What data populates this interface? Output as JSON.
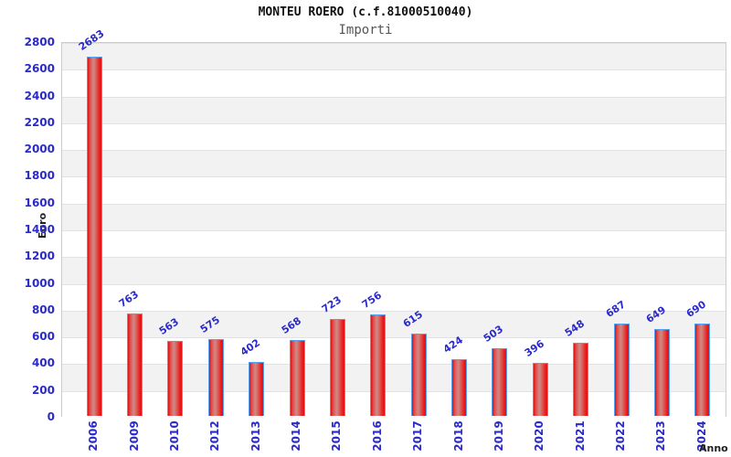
{
  "header": {
    "title": "MONTEU ROERO (c.f.81000510040)",
    "subtitle": "Importi"
  },
  "chart_data": {
    "type": "bar",
    "title": "MONTEU ROERO (c.f.81000510040)",
    "subtitle": "Importi",
    "xlabel": "Anno",
    "ylabel": "Euro",
    "categories": [
      "2006",
      "2009",
      "2010",
      "2012",
      "2013",
      "2014",
      "2015",
      "2016",
      "2017",
      "2018",
      "2019",
      "2020",
      "2021",
      "2022",
      "2023",
      "2024"
    ],
    "values": [
      2683,
      763,
      563,
      575,
      402,
      568,
      723,
      756,
      615,
      424,
      503,
      396,
      548,
      687,
      649,
      690
    ],
    "ylim": [
      0,
      2800
    ],
    "ytick_step": 200,
    "yticks": [
      0,
      200,
      400,
      600,
      800,
      1000,
      1200,
      1400,
      1600,
      1800,
      2000,
      2200,
      2400,
      2600,
      2800
    ],
    "legend": "none",
    "grid": "alternating horizontal bands of 200 units, gray and white, with light gridlines",
    "value_labels": "above each bar, rotated diagonally",
    "colors": {
      "bar_fill_edge": "#e01212",
      "bar_fill_middle": "#cf8a86",
      "bar_border": "#55a0f0",
      "tick_label": "#2a2ac8",
      "value_label": "#2a2ac8",
      "band_gray": "#f2f2f2",
      "band_white": "#ffffff",
      "grid_line": "#e2e2e2",
      "plot_border": "#cccccc",
      "axis_title": "#222222",
      "title": "#111111",
      "subtitle": "#555555"
    }
  }
}
